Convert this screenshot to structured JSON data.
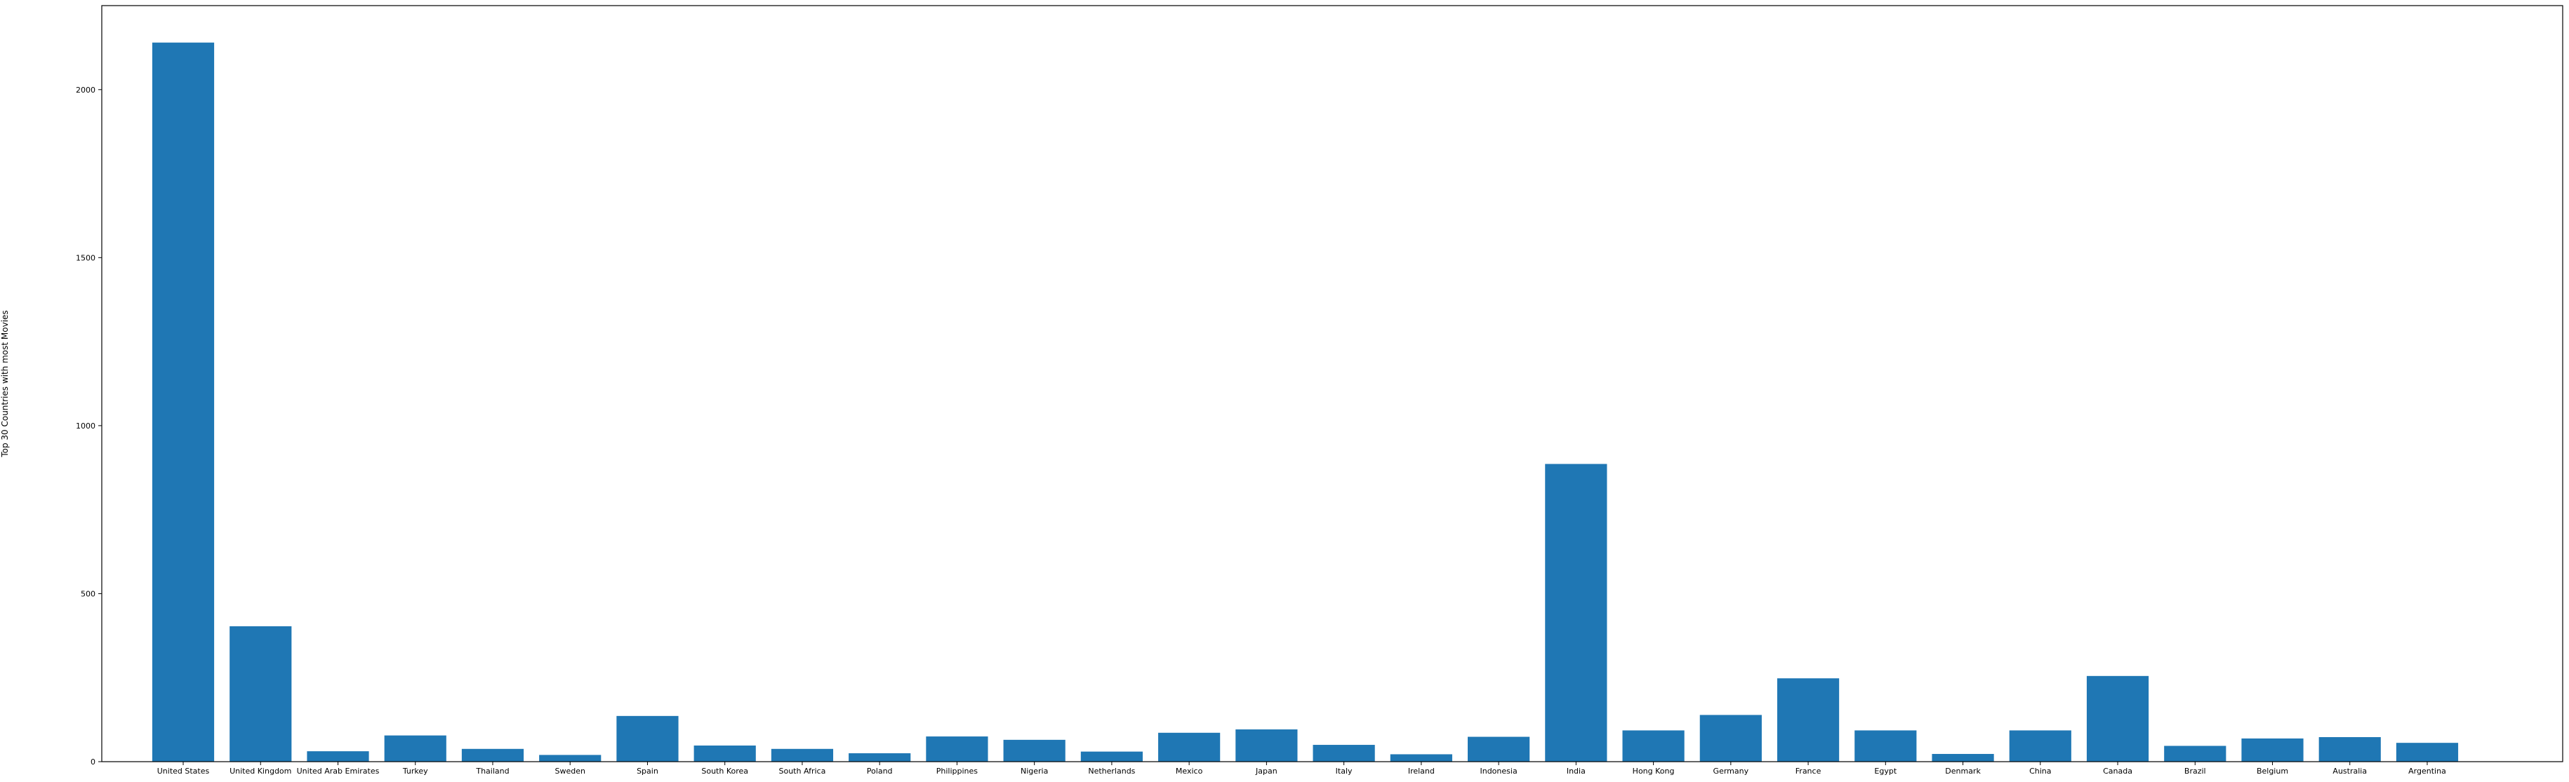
{
  "chart_data": {
    "type": "bar",
    "title": "",
    "xlabel": "",
    "ylabel": "Top 30 Countries with most Movies",
    "categories": [
      "United States",
      "United Kingdom",
      "United Arab Emirates",
      "Turkey",
      "Thailand",
      "Sweden",
      "Spain",
      "South Korea",
      "South Africa",
      "Poland",
      "Philippines",
      "Nigeria",
      "Netherlands",
      "Mexico",
      "Japan",
      "Italy",
      "Ireland",
      "Indonesia",
      "India",
      "Hong Kong",
      "Germany",
      "France",
      "Egypt",
      "Denmark",
      "China",
      "Canada",
      "Brazil",
      "Belgium",
      "Australia",
      "Argentina"
    ],
    "values": [
      2140,
      403,
      31,
      78,
      38,
      20,
      136,
      48,
      38,
      25,
      75,
      65,
      30,
      86,
      96,
      50,
      22,
      74,
      886,
      93,
      139,
      248,
      93,
      23,
      93,
      255,
      47,
      69,
      73,
      56
    ],
    "yticks": [
      0,
      500,
      1000,
      1500,
      2000
    ],
    "ylim": [
      0,
      2250
    ],
    "bar_color": "#1f77b4",
    "grid": false,
    "legend": "none"
  }
}
